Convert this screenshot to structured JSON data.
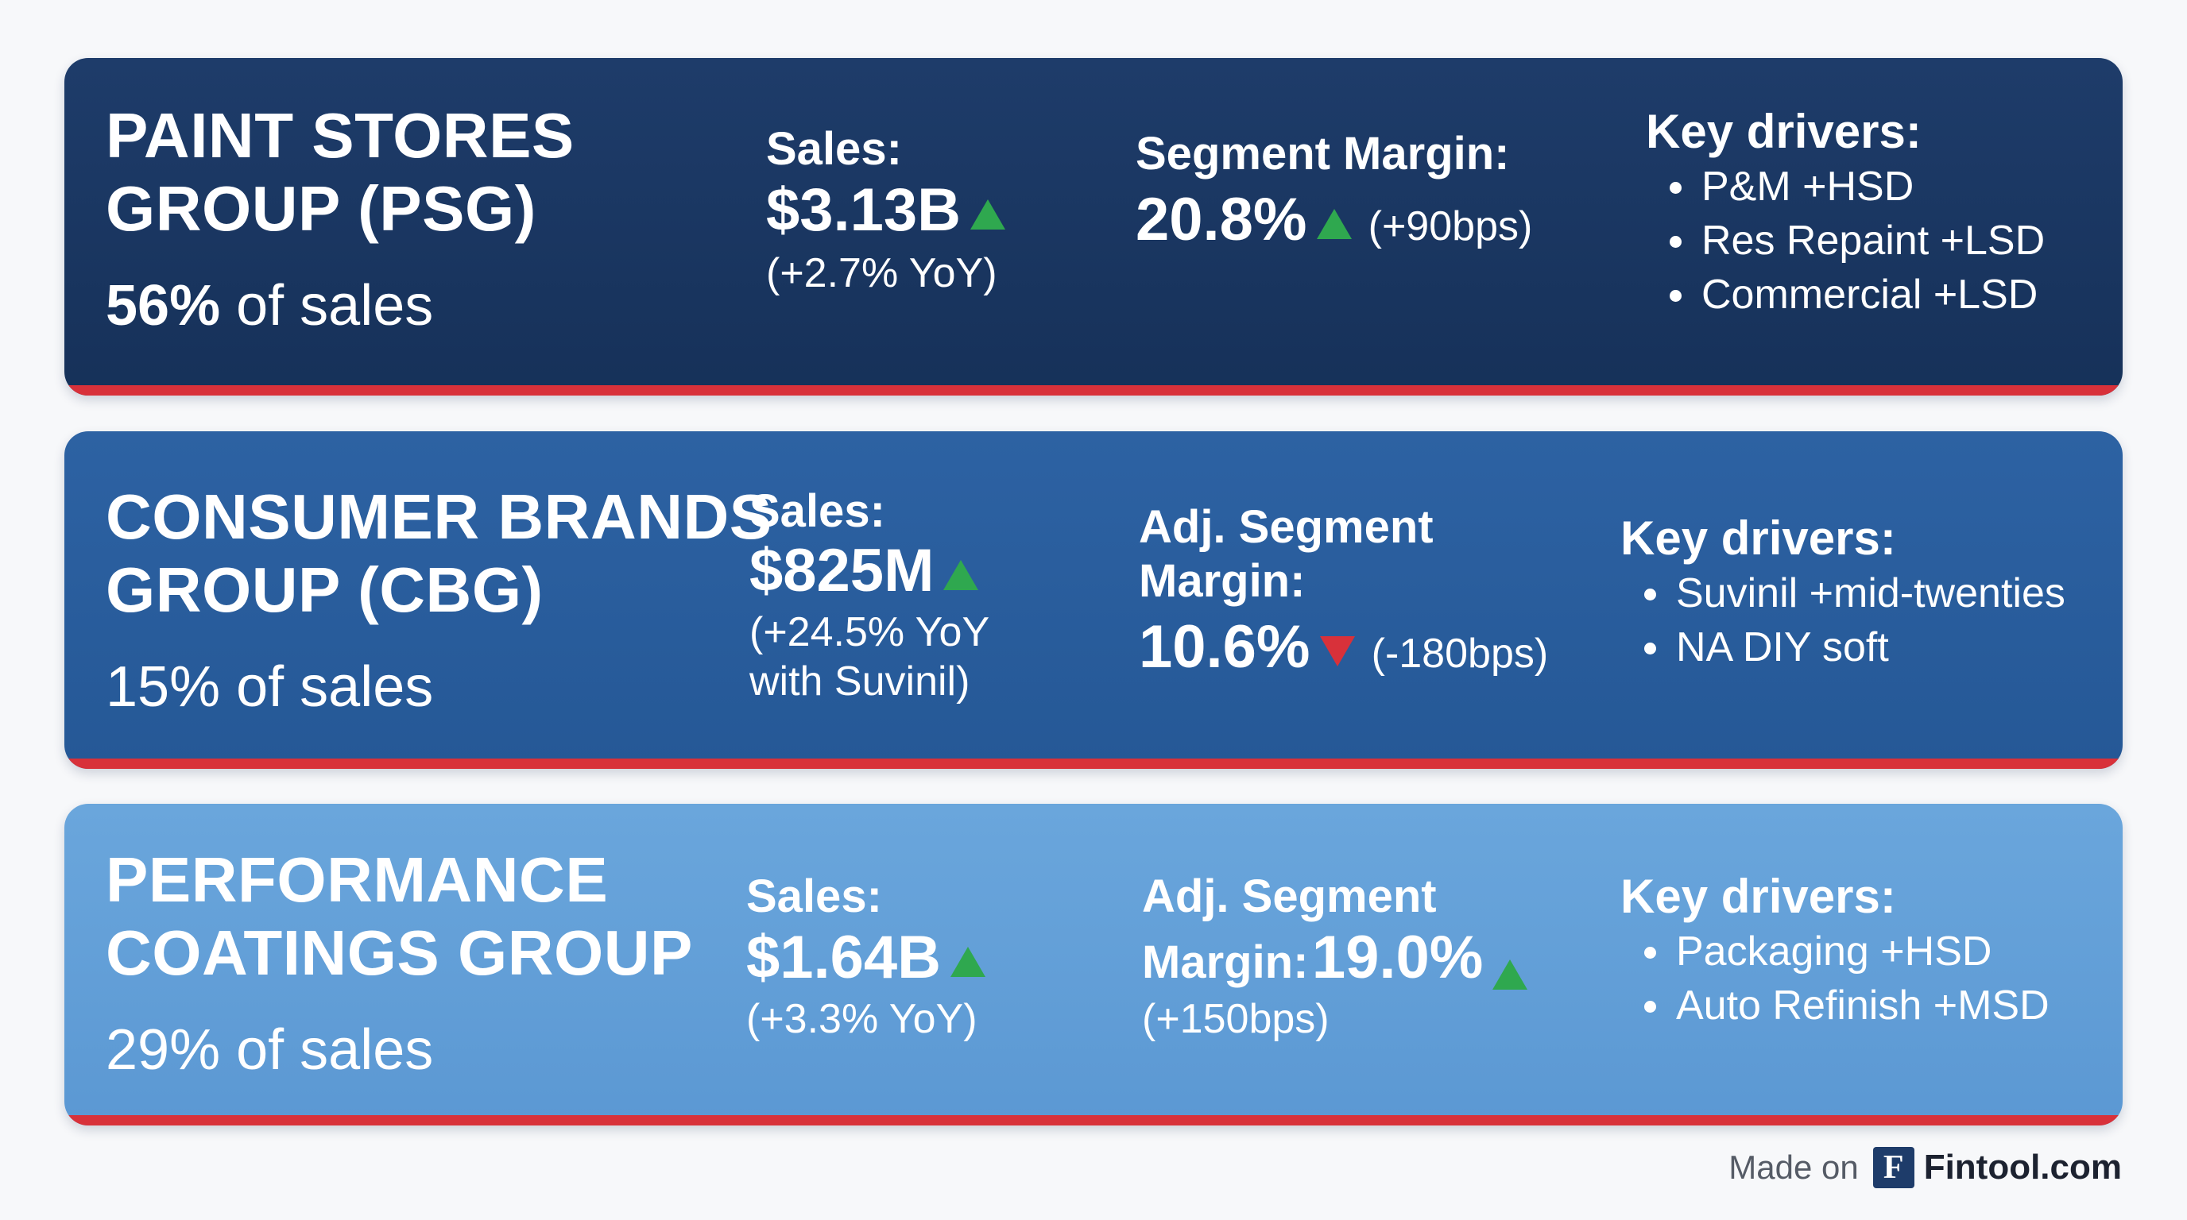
{
  "segments": [
    {
      "title_line1": "PAINT STORES",
      "title_line2": "GROUP (PSG)",
      "share_value": "56%",
      "share_suffix": " of sales",
      "sales_label": "Sales:",
      "sales_value": "$3.13B",
      "sales_trend": "up",
      "sales_sub_line1": "(+2.7% YoY)",
      "sales_sub_line2": "",
      "margin_label_line1": "Segment Margin:",
      "margin_label_line2": "",
      "margin_value": "20.8%",
      "margin_trend": "up",
      "margin_change": "(+90bps)",
      "drivers_title": "Key drivers:",
      "drivers": [
        "P&M +HSD",
        "Res Repaint +LSD",
        "Commercial +LSD"
      ]
    },
    {
      "title_line1": "CONSUMER BRANDS",
      "title_line2": "GROUP (CBG)",
      "share_value": "15% of sales",
      "sales_label": "Sales:",
      "sales_value": "$825M",
      "sales_trend": "up",
      "sales_sub_line1": "(+24.5% YoY",
      "sales_sub_line2": "with Suvinil)",
      "margin_label_line1": "Adj. Segment",
      "margin_label_line2": "Margin:",
      "margin_value": "10.6%",
      "margin_trend": "down",
      "margin_change": "(-180bps)",
      "drivers_title": "Key drivers:",
      "drivers": [
        "Suvinil +mid-twenties",
        "NA DIY soft"
      ]
    },
    {
      "title_line1": "PERFORMANCE",
      "title_line2": "COATINGS GROUP",
      "share_value": "29% of sales",
      "sales_label": "Sales:",
      "sales_value": "$1.64B",
      "sales_trend": "up",
      "sales_sub_line1": "(+3.3% YoY)",
      "margin_label_line1": "Adj. Segment",
      "margin_label_inline": "Margin:",
      "margin_value": "19.0%",
      "margin_trend": "up",
      "margin_change": "(+150bps)",
      "drivers_title": "Key drivers:",
      "drivers": [
        "Packaging +HSD",
        "Auto Refinish +MSD"
      ]
    }
  ],
  "footer": {
    "made_on": "Made on",
    "logo_letter": "F",
    "brand": "Fintool.com"
  },
  "colors": {
    "psg_bg": "#1e3c6a",
    "cbg_bg": "#2d62a3",
    "pcg_bg": "#6aa6dc",
    "accent_bar": "#d8313a",
    "trend_up": "#2fa84f",
    "trend_down": "#d8313a"
  },
  "icons": {
    "trend_up": "triangle-up-icon",
    "trend_down": "triangle-down-icon",
    "bullet": "bullet-dot-icon"
  }
}
